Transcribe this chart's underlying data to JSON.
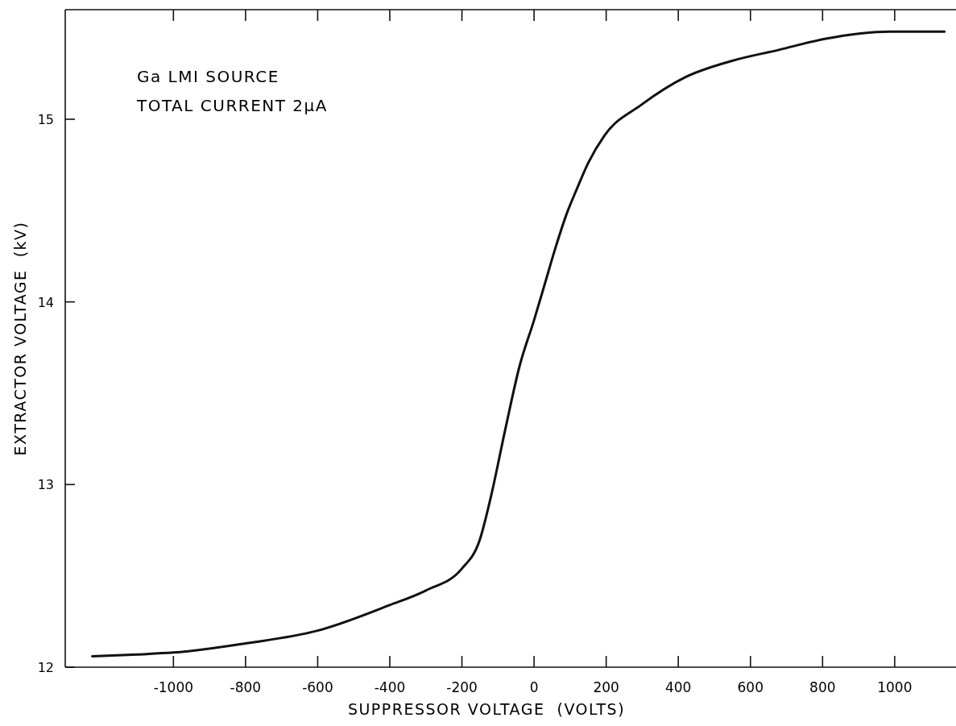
{
  "chart_data": {
    "type": "line",
    "xlabel": "SUPPRESSOR VOLTAGE  (VOLTS)",
    "ylabel": "EXTRACTOR VOLTAGE  (kV)",
    "annotations": [
      "Ga LMI SOURCE",
      "TOTAL CURRENT 2μA"
    ],
    "xlim": [
      -1300,
      1170
    ],
    "ylim": [
      12,
      15.6
    ],
    "xticks": [
      -1000,
      -800,
      -600,
      -400,
      -200,
      0,
      200,
      400,
      600,
      800,
      1000
    ],
    "yticks": [
      12,
      13,
      14,
      15
    ],
    "marker": "none",
    "line_style": "solid",
    "series": [
      {
        "color": "#111111",
        "x": [
          -1225,
          -1100,
          -1000,
          -800,
          -600,
          -400,
          -300,
          -200,
          -150,
          -120,
          -80,
          -40,
          0,
          30,
          60,
          90,
          119,
          150,
          195,
          298,
          419,
          549,
          679,
          806,
          988,
          1138
        ],
        "values": [
          12.06,
          12.07,
          12.08,
          12.13,
          12.2,
          12.34,
          12.42,
          12.54,
          12.7,
          12.93,
          13.3,
          13.65,
          13.9,
          14.1,
          14.3,
          14.48,
          14.62,
          14.76,
          14.91,
          15.08,
          15.23,
          15.32,
          15.38,
          15.44,
          15.48,
          15.48
        ]
      }
    ]
  }
}
